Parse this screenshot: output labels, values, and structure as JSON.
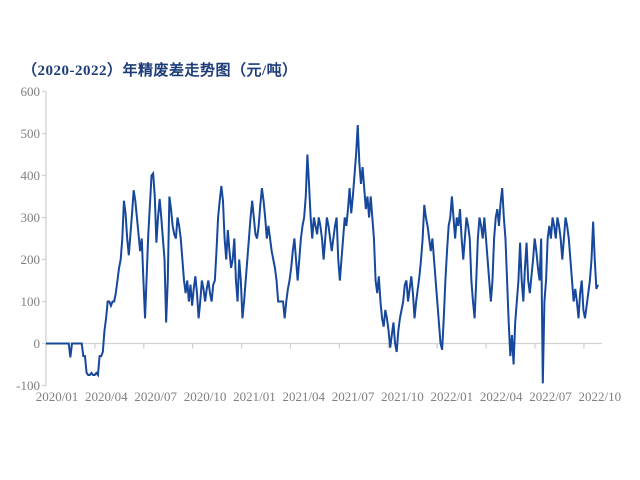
{
  "chart_data": {
    "type": "line",
    "title": "（2020-2022）年精废差走势图（元/吨）",
    "title_color": "#1d3c78",
    "line_color": "#17489c",
    "axis_color": "#d2d2d2",
    "tick_label_color": "#7f7f7f",
    "background_color": "#ffffff",
    "legend": "none",
    "grid": "zero-baseline-only",
    "ylim": [
      -100,
      600
    ],
    "y_tick_labels": [
      "600",
      "500",
      "400",
      "300",
      "200",
      "100",
      "0",
      "-100"
    ],
    "y_tick_values": [
      600,
      500,
      400,
      300,
      200,
      100,
      0,
      -100
    ],
    "x_tick_labels": [
      "2020/01",
      "2020/04",
      "2020/07",
      "2020/10",
      "2021/01",
      "2021/04",
      "2021/07",
      "2021/10",
      "2022/01",
      "2022/04",
      "2022/07",
      "2022/10"
    ],
    "x_range": [
      "2020/01",
      "2022/10"
    ],
    "values": [
      0,
      0,
      0,
      0,
      0,
      0,
      0,
      0,
      0,
      0,
      0,
      0,
      0,
      0,
      0,
      -33,
      0,
      0,
      0,
      0,
      0,
      0,
      0,
      -30,
      -30,
      -70,
      -75,
      -75,
      -70,
      -75,
      -75,
      -70,
      -75,
      -30,
      -30,
      -20,
      30,
      60,
      100,
      100,
      90,
      100,
      100,
      120,
      150,
      180,
      200,
      250,
      340,
      310,
      250,
      210,
      260,
      310,
      365,
      340,
      300,
      260,
      220,
      250,
      150,
      60,
      160,
      260,
      330,
      400,
      405,
      350,
      240,
      300,
      344,
      300,
      250,
      200,
      50,
      150,
      350,
      320,
      280,
      260,
      250,
      300,
      280,
      250,
      200,
      150,
      120,
      150,
      100,
      140,
      90,
      130,
      160,
      120,
      60,
      100,
      150,
      130,
      100,
      130,
      150,
      120,
      100,
      140,
      150,
      220,
      300,
      340,
      375,
      340,
      250,
      200,
      270,
      220,
      180,
      200,
      250,
      150,
      100,
      200,
      150,
      60,
      100,
      150,
      200,
      250,
      300,
      340,
      300,
      260,
      250,
      280,
      330,
      370,
      340,
      300,
      250,
      280,
      250,
      220,
      200,
      180,
      150,
      100,
      100,
      100,
      100,
      60,
      100,
      130,
      150,
      180,
      220,
      250,
      200,
      150,
      200,
      250,
      280,
      300,
      350,
      450,
      380,
      300,
      250,
      300,
      280,
      260,
      300,
      280,
      250,
      200,
      250,
      300,
      280,
      250,
      220,
      250,
      280,
      300,
      200,
      150,
      200,
      250,
      300,
      280,
      320,
      370,
      310,
      350,
      400,
      450,
      520,
      430,
      380,
      420,
      370,
      320,
      350,
      300,
      350,
      300,
      250,
      150,
      120,
      160,
      100,
      60,
      40,
      80,
      60,
      30,
      -10,
      20,
      50,
      0,
      -20,
      30,
      60,
      80,
      100,
      140,
      150,
      100,
      130,
      160,
      120,
      60,
      100,
      130,
      160,
      200,
      250,
      330,
      300,
      280,
      250,
      220,
      250,
      200,
      150,
      100,
      50,
      0,
      -15,
      60,
      150,
      220,
      280,
      300,
      350,
      300,
      250,
      300,
      280,
      320,
      250,
      200,
      250,
      300,
      280,
      250,
      150,
      100,
      60,
      150,
      250,
      300,
      280,
      250,
      300,
      250,
      200,
      150,
      100,
      150,
      250,
      300,
      320,
      280,
      335,
      370,
      300,
      250,
      150,
      50,
      -30,
      20,
      -50,
      50,
      100,
      150,
      240,
      150,
      100,
      180,
      240,
      150,
      120,
      160,
      200,
      250,
      220,
      180,
      150,
      250,
      -95,
      100,
      150,
      250,
      280,
      250,
      300,
      280,
      250,
      300,
      280,
      250,
      200,
      250,
      300,
      280,
      250,
      200,
      150,
      100,
      130,
      100,
      60,
      120,
      150,
      80,
      60,
      90,
      120,
      150,
      200,
      290,
      200,
      130,
      140
    ]
  }
}
